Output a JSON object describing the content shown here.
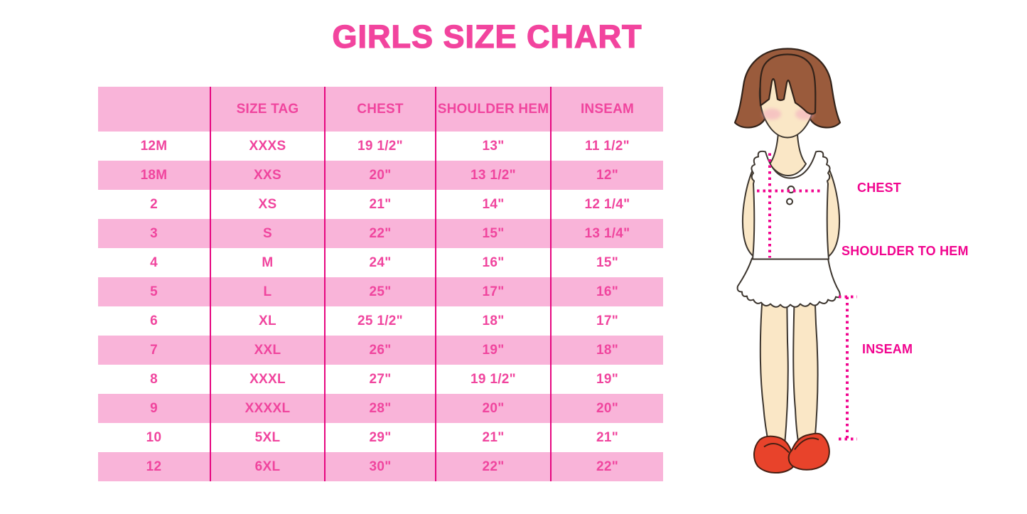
{
  "title": "GIRLS SIZE CHART",
  "chart_data": {
    "type": "table",
    "title": "GIRLS SIZE CHART",
    "columns": [
      "",
      "SIZE TAG",
      "CHEST",
      "SHOULDER HEM",
      "INSEAM"
    ],
    "rows": [
      [
        "12M",
        "XXXS",
        "19 1/2\"",
        "13\"",
        "11 1/2\""
      ],
      [
        "18M",
        "XXS",
        "20\"",
        "13 1/2\"",
        "12\""
      ],
      [
        "2",
        "XS",
        "21\"",
        "14\"",
        "12 1/4\""
      ],
      [
        "3",
        "S",
        "22\"",
        "15\"",
        "13 1/4\""
      ],
      [
        "4",
        "M",
        "24\"",
        "16\"",
        "15\""
      ],
      [
        "5",
        "L",
        "25\"",
        "17\"",
        "16\""
      ],
      [
        "6",
        "XL",
        "25 1/2\"",
        "18\"",
        "17\""
      ],
      [
        "7",
        "XXL",
        "26\"",
        "19\"",
        "18\""
      ],
      [
        "8",
        "XXXL",
        "27\"",
        "19 1/2\"",
        "19\""
      ],
      [
        "9",
        "XXXXL",
        "28\"",
        "20\"",
        "20\""
      ],
      [
        "10",
        "5XL",
        "29\"",
        "21\"",
        "21\""
      ],
      [
        "12",
        "6XL",
        "30\"",
        "22\"",
        "22\""
      ]
    ],
    "units": "inches",
    "layout": {
      "striped": true,
      "header_row": "pink",
      "stripe_pattern": "white/pink alternating",
      "grid": "vertical magenta column dividers only",
      "legend_position": "none"
    }
  },
  "figure": {
    "description": "illustrated girl showing measurement locations",
    "labels": {
      "chest": "CHEST",
      "shoulder_to_hem": "SHOULDER TO HEM",
      "inseam": "INSEAM"
    }
  },
  "colors": {
    "title_pink": "#F2449E",
    "table_text_pink": "#F0459E",
    "row_pink": "#F9B4D9",
    "divider_magenta": "#E6067F",
    "label_magenta": "#F1058F",
    "hair_brown": "#9A5B3C",
    "skin": "#FAE7C6",
    "blush": "#F2A9BE",
    "shoe_red": "#E8432B"
  }
}
